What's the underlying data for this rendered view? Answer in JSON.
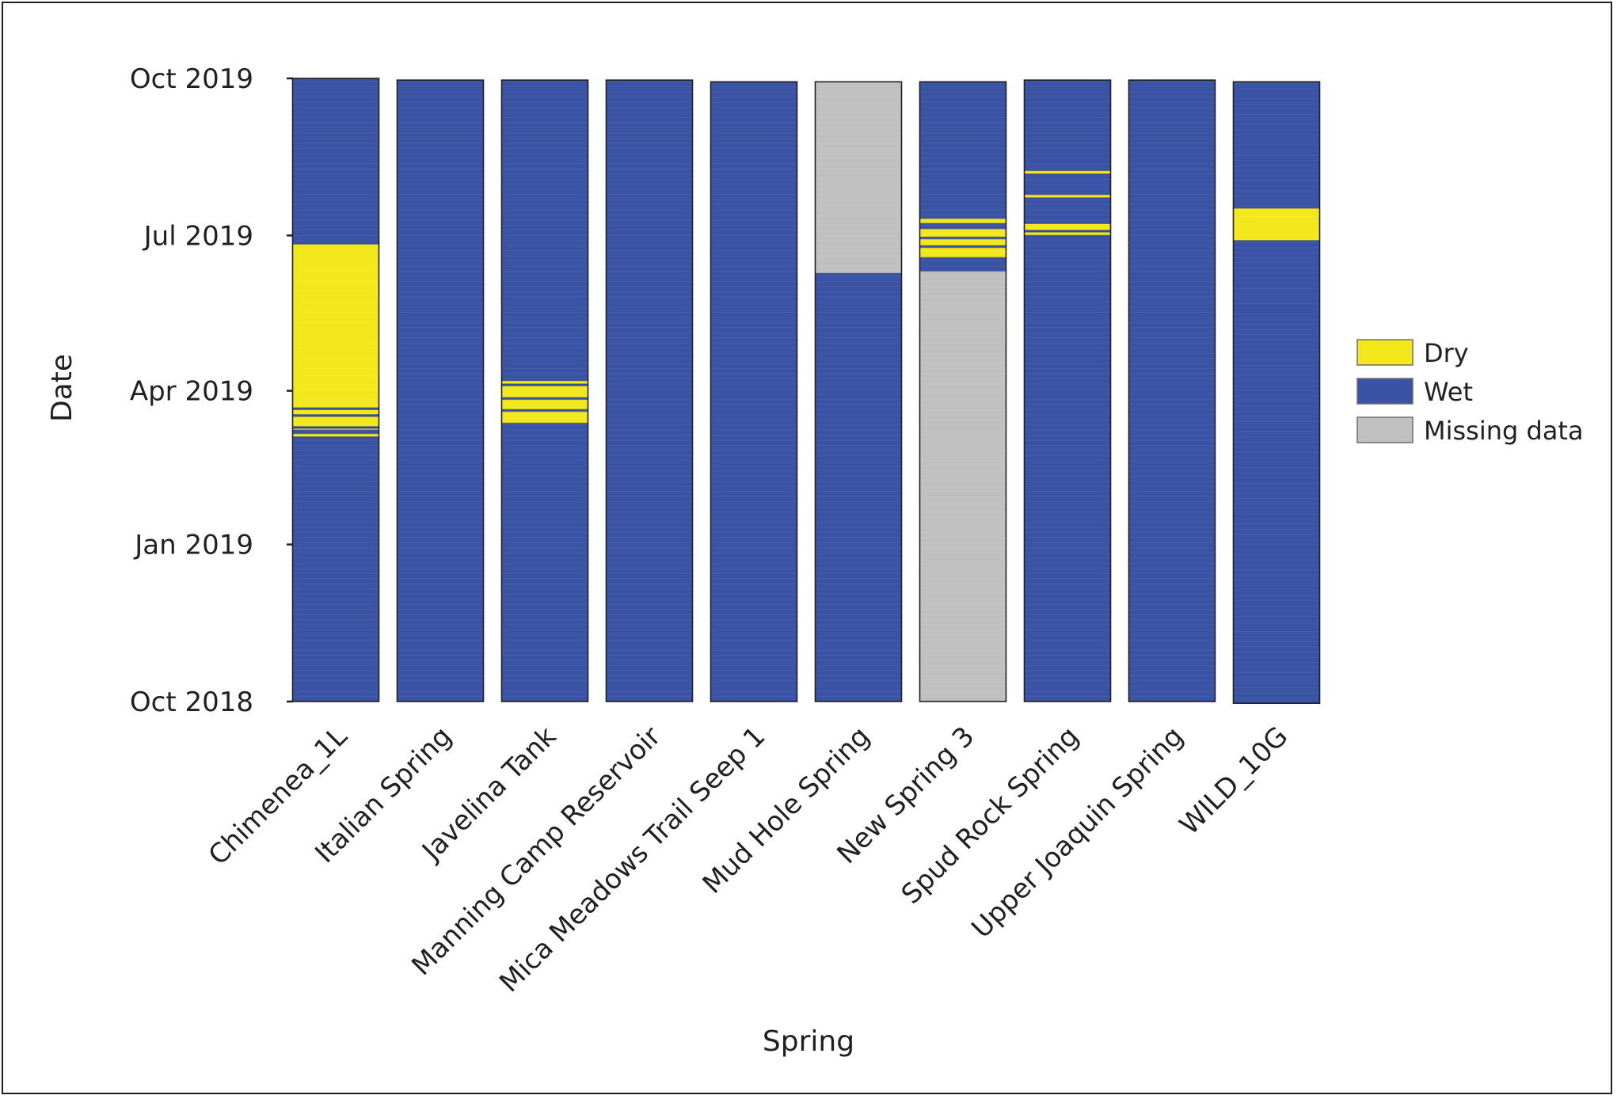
{
  "chart_data": {
    "type": "bar",
    "subtype": "stacked-status-timeline",
    "xlabel": "Spring",
    "ylabel": "Date",
    "ylim": [
      "2018-10-01",
      "2019-10-01"
    ],
    "y_ticks": [
      {
        "date": "2018-10-01",
        "label": "Oct 2018"
      },
      {
        "date": "2019-01-01",
        "label": "Jan 2019"
      },
      {
        "date": "2019-04-01",
        "label": "Apr 2019"
      },
      {
        "date": "2019-07-01",
        "label": "Jul 2019"
      },
      {
        "date": "2019-10-01",
        "label": "Oct 2019"
      }
    ],
    "legend": {
      "position": "right",
      "entries": [
        {
          "key": "dry",
          "label": "Dry",
          "color": "#f2e81c"
        },
        {
          "key": "wet",
          "label": "Wet",
          "color": "#3a53a4"
        },
        {
          "key": "missing",
          "label": "Missing data",
          "color": "#c0c0c0"
        }
      ]
    },
    "categories": [
      "Chimenea_1L",
      "Italian Spring",
      "Javelina Tank",
      "Manning Camp Reservoir",
      "Mica Meadows Trail Seep 1",
      "Mud Hole Spring",
      "New Spring 3",
      "Spud Rock Spring",
      "Upper Joaquin Spring",
      "WILD_10G"
    ],
    "springs": [
      {
        "name": "Chimenea_1L",
        "start": "2018-10-01",
        "end": "2019-10-01",
        "segments": [
          {
            "status": "wet",
            "from": "2018-10-01",
            "to": "2019-03-05"
          },
          {
            "status": "dry",
            "from": "2019-03-05",
            "to": "2019-03-07"
          },
          {
            "status": "dry",
            "from": "2019-03-09",
            "to": "2019-03-10"
          },
          {
            "status": "dry",
            "from": "2019-03-11",
            "to": "2019-03-17"
          },
          {
            "status": "dry",
            "from": "2019-03-18",
            "to": "2019-03-21"
          },
          {
            "status": "dry",
            "from": "2019-03-22",
            "to": "2019-06-26"
          },
          {
            "status": "wet",
            "from": "2019-06-26",
            "to": "2019-10-01"
          }
        ]
      },
      {
        "name": "Italian Spring",
        "start": "2018-10-01",
        "end": "2019-09-30",
        "segments": [
          {
            "status": "wet",
            "from": "2018-10-01",
            "to": "2019-09-30"
          }
        ]
      },
      {
        "name": "Javelina Tank",
        "start": "2018-10-01",
        "end": "2019-09-30",
        "segments": [
          {
            "status": "wet",
            "from": "2018-10-01",
            "to": "2019-03-13"
          },
          {
            "status": "dry",
            "from": "2019-03-13",
            "to": "2019-03-20"
          },
          {
            "status": "dry",
            "from": "2019-03-21",
            "to": "2019-03-27"
          },
          {
            "status": "dry",
            "from": "2019-03-28",
            "to": "2019-04-04"
          },
          {
            "status": "dry",
            "from": "2019-04-05",
            "to": "2019-04-07"
          },
          {
            "status": "wet",
            "from": "2019-04-07",
            "to": "2019-09-30"
          }
        ]
      },
      {
        "name": "Manning Camp Reservoir",
        "start": "2018-10-01",
        "end": "2019-09-30",
        "segments": [
          {
            "status": "wet",
            "from": "2018-10-01",
            "to": "2019-09-30"
          }
        ]
      },
      {
        "name": "Mica Meadows Trail Seep 1",
        "start": "2018-10-01",
        "end": "2019-09-29",
        "segments": [
          {
            "status": "wet",
            "from": "2018-10-01",
            "to": "2019-09-29"
          }
        ]
      },
      {
        "name": "Mud Hole Spring",
        "start": "2018-10-01",
        "end": "2019-09-29",
        "segments": [
          {
            "status": "wet",
            "from": "2018-10-01",
            "to": "2019-06-09"
          },
          {
            "status": "missing",
            "from": "2019-06-09",
            "to": "2019-09-29"
          }
        ]
      },
      {
        "name": "New Spring 3",
        "start": "2018-10-01",
        "end": "2019-09-29",
        "segments": [
          {
            "status": "missing",
            "from": "2018-10-01",
            "to": "2019-06-10"
          },
          {
            "status": "wet",
            "from": "2019-06-10",
            "to": "2019-06-18"
          },
          {
            "status": "dry",
            "from": "2019-06-18",
            "to": "2019-06-24"
          },
          {
            "status": "dry",
            "from": "2019-06-25",
            "to": "2019-06-29"
          },
          {
            "status": "dry",
            "from": "2019-06-30",
            "to": "2019-07-05"
          },
          {
            "status": "dry",
            "from": "2019-07-08",
            "to": "2019-07-11"
          },
          {
            "status": "wet",
            "from": "2019-07-11",
            "to": "2019-09-29"
          }
        ]
      },
      {
        "name": "Spud Rock Spring",
        "start": "2018-10-01",
        "end": "2019-09-30",
        "segments": [
          {
            "status": "wet",
            "from": "2018-10-01",
            "to": "2019-07-01"
          },
          {
            "status": "dry",
            "from": "2019-07-01",
            "to": "2019-07-03"
          },
          {
            "status": "dry",
            "from": "2019-07-04",
            "to": "2019-07-08"
          },
          {
            "status": "dry",
            "from": "2019-07-23",
            "to": "2019-07-25"
          },
          {
            "status": "dry",
            "from": "2019-08-06",
            "to": "2019-08-08"
          },
          {
            "status": "wet",
            "from": "2019-08-08",
            "to": "2019-09-30"
          }
        ]
      },
      {
        "name": "Upper Joaquin Spring",
        "start": "2018-10-01",
        "end": "2019-09-30",
        "segments": [
          {
            "status": "wet",
            "from": "2018-10-01",
            "to": "2019-09-30"
          }
        ]
      },
      {
        "name": "WILD_10G",
        "start": "2018-09-30",
        "end": "2019-09-29",
        "segments": [
          {
            "status": "wet",
            "from": "2018-09-30",
            "to": "2019-06-28"
          },
          {
            "status": "dry",
            "from": "2019-06-28",
            "to": "2019-07-17"
          },
          {
            "status": "wet",
            "from": "2019-07-17",
            "to": "2019-09-29"
          }
        ]
      }
    ]
  }
}
